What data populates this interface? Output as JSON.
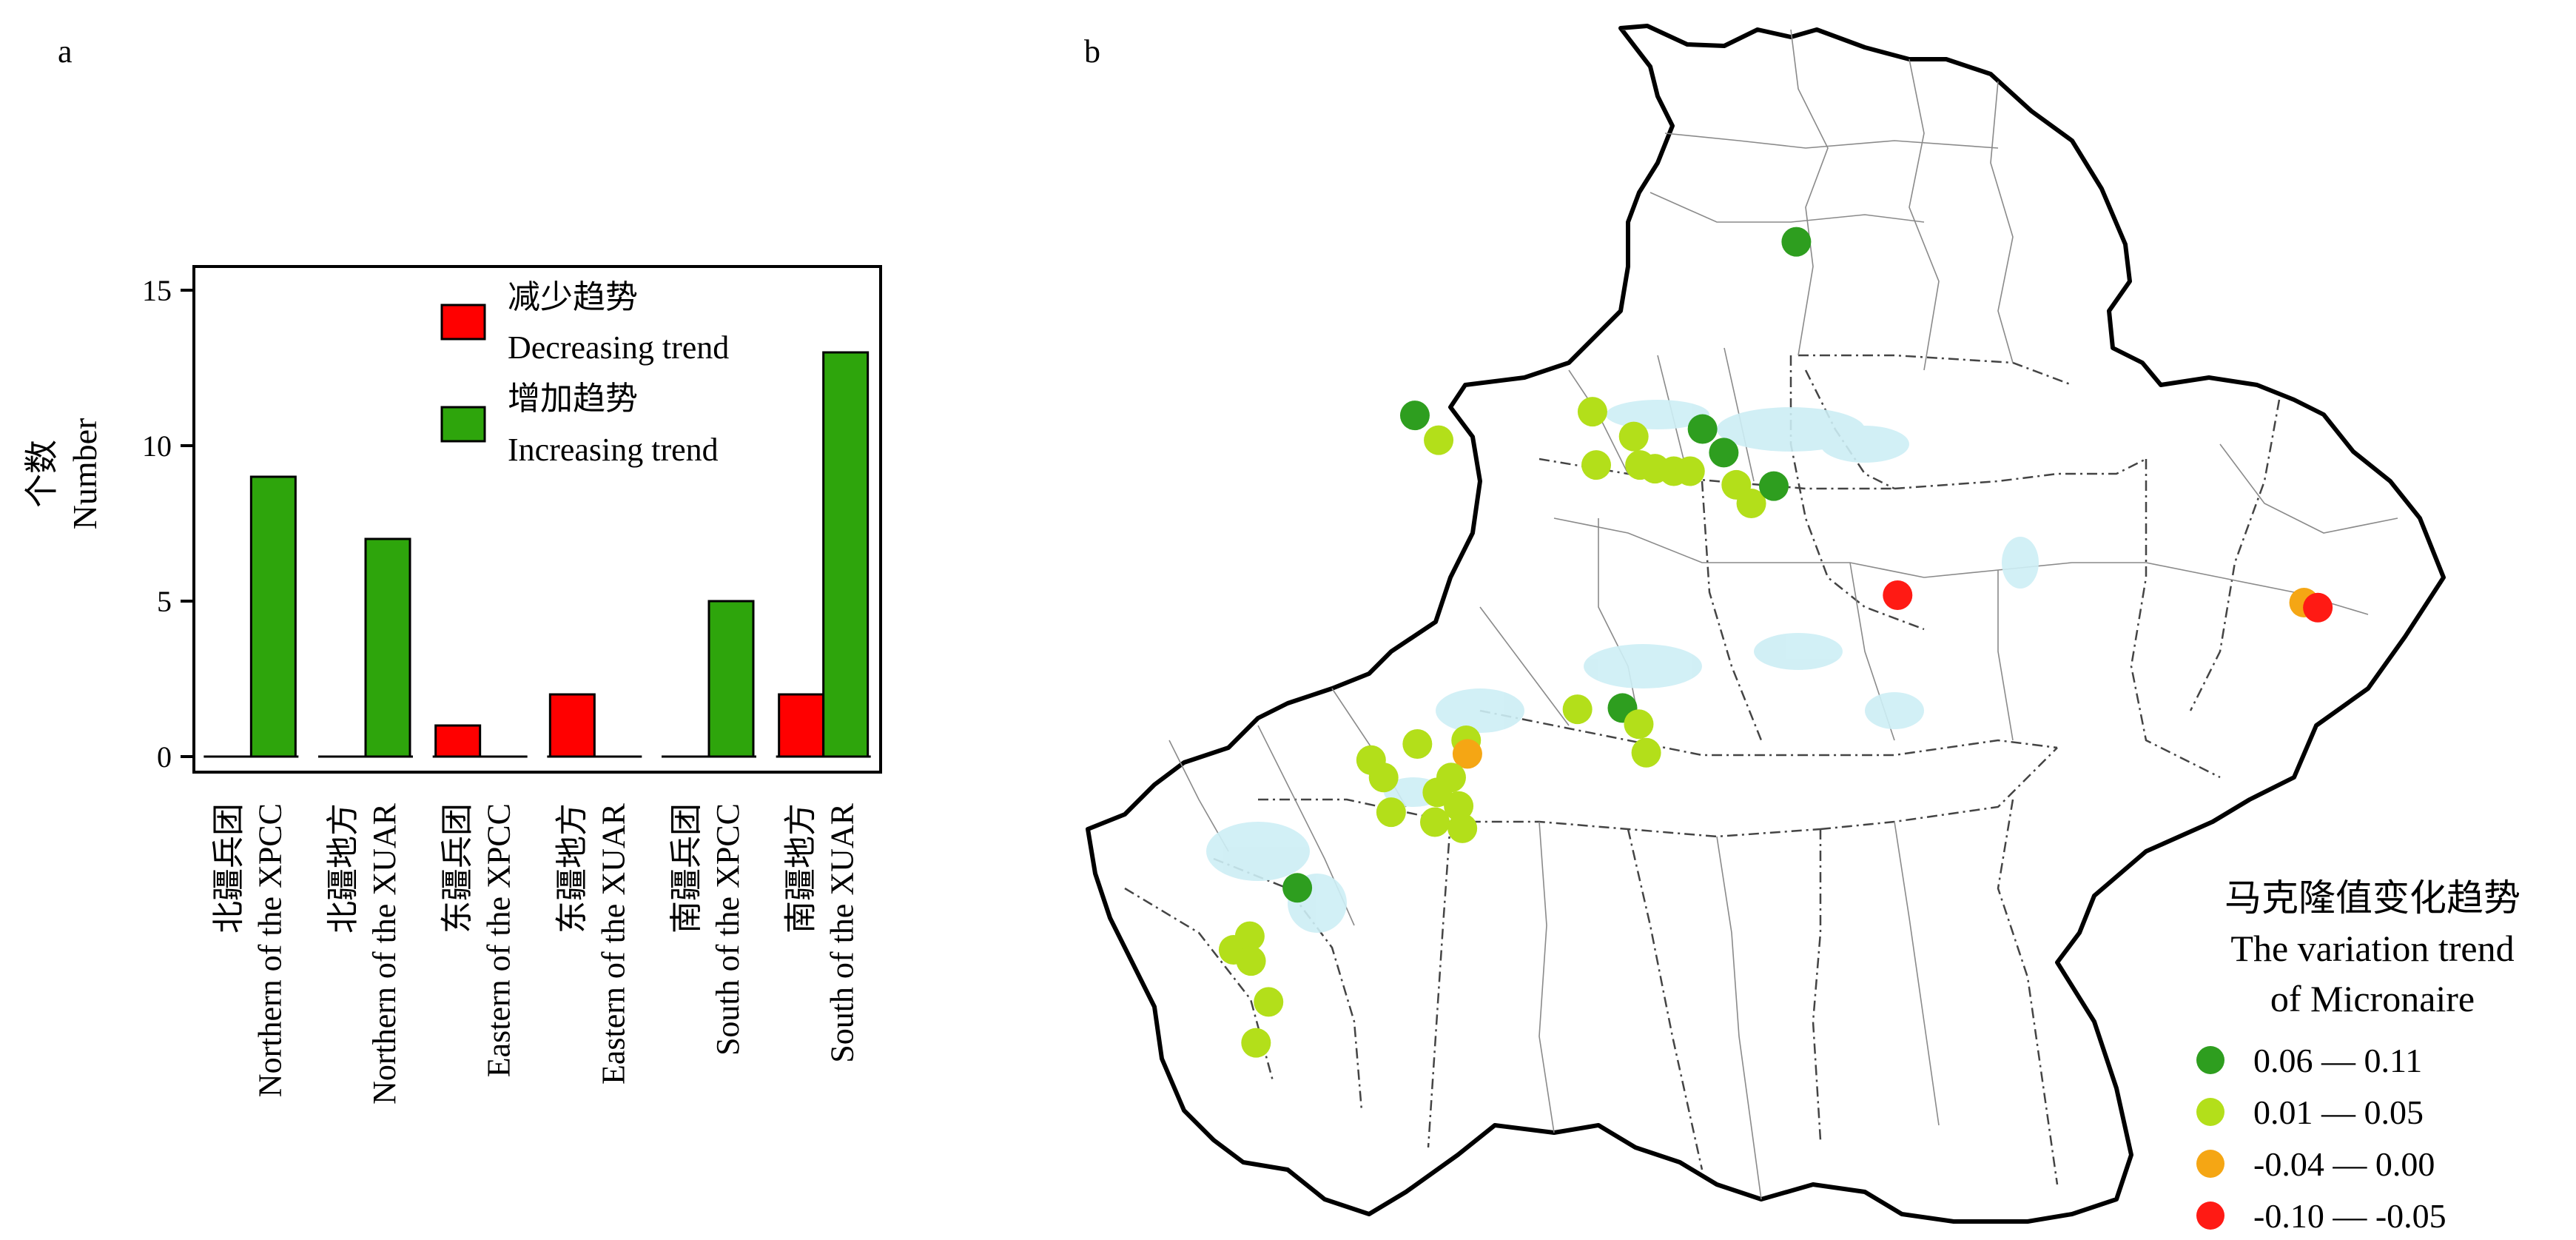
{
  "panel_a_letter": "a",
  "panel_b_letter": "b",
  "chart_data": [
    {
      "type": "bar",
      "ylabel_cn": "个数",
      "ylabel_en": "Number",
      "ylim": [
        0,
        16.5
      ],
      "yticks": [
        0,
        5,
        10,
        15
      ],
      "legend_position": "top-right",
      "categories": [
        {
          "cn": "北疆兵团",
          "en": "Northern of the XPCC"
        },
        {
          "cn": "北疆地方",
          "en": "Northern of the XUAR"
        },
        {
          "cn": "东疆兵团",
          "en": "Eastern of the XPCC"
        },
        {
          "cn": "东疆地方",
          "en": "Eastern of the XUAR"
        },
        {
          "cn": "南疆兵团",
          "en": "South of the XPCC"
        },
        {
          "cn": "南疆地方",
          "en": "South of the XUAR"
        }
      ],
      "series": [
        {
          "name_cn": "减少趋势",
          "name_en": "Decreasing trend",
          "color": "#ff0000",
          "values": [
            0,
            0,
            1,
            2,
            0,
            2
          ]
        },
        {
          "name_cn": "增加趋势",
          "name_en": "Increasing trend",
          "color": "#2ea50c",
          "values": [
            9,
            7,
            0,
            0,
            5,
            13
          ]
        }
      ]
    },
    {
      "type": "scatter",
      "legend_title_cn": "马克隆值变化趋势",
      "legend_title_en_1": "The variation trend",
      "legend_title_en_2": "of  Micronaire",
      "classes": [
        {
          "label": "0.06 — 0.11",
          "color": "#2e9e1f"
        },
        {
          "label": "0.01 — 0.05",
          "color": "#b3df1a"
        },
        {
          "label": "-0.04 — 0.00",
          "color": "#f5a614"
        },
        {
          "label": "-0.10 — -0.05",
          "color": "#ff1a14"
        }
      ],
      "points": [
        {
          "x": 0.46,
          "y": 0.195,
          "c": 0
        },
        {
          "x": 0.155,
          "y": 0.335,
          "c": 0
        },
        {
          "x": 0.174,
          "y": 0.355,
          "c": 1
        },
        {
          "x": 0.297,
          "y": 0.332,
          "c": 1
        },
        {
          "x": 0.3,
          "y": 0.375,
          "c": 1
        },
        {
          "x": 0.33,
          "y": 0.352,
          "c": 1
        },
        {
          "x": 0.335,
          "y": 0.375,
          "c": 1
        },
        {
          "x": 0.347,
          "y": 0.378,
          "c": 1
        },
        {
          "x": 0.362,
          "y": 0.38,
          "c": 1
        },
        {
          "x": 0.375,
          "y": 0.38,
          "c": 1
        },
        {
          "x": 0.385,
          "y": 0.346,
          "c": 0
        },
        {
          "x": 0.402,
          "y": 0.365,
          "c": 0
        },
        {
          "x": 0.412,
          "y": 0.391,
          "c": 1
        },
        {
          "x": 0.424,
          "y": 0.406,
          "c": 1
        },
        {
          "x": 0.442,
          "y": 0.392,
          "c": 0
        },
        {
          "x": 0.541,
          "y": 0.48,
          "c": 3
        },
        {
          "x": 0.866,
          "y": 0.486,
          "c": 2
        },
        {
          "x": 0.877,
          "y": 0.49,
          "c": 3
        },
        {
          "x": 0.285,
          "y": 0.572,
          "c": 1
        },
        {
          "x": 0.321,
          "y": 0.571,
          "c": 0
        },
        {
          "x": 0.334,
          "y": 0.584,
          "c": 1
        },
        {
          "x": 0.34,
          "y": 0.607,
          "c": 1
        },
        {
          "x": 0.196,
          "y": 0.597,
          "c": 1
        },
        {
          "x": 0.197,
          "y": 0.608,
          "c": 2
        },
        {
          "x": 0.157,
          "y": 0.6,
          "c": 1
        },
        {
          "x": 0.184,
          "y": 0.627,
          "c": 1
        },
        {
          "x": 0.173,
          "y": 0.639,
          "c": 1
        },
        {
          "x": 0.19,
          "y": 0.65,
          "c": 1
        },
        {
          "x": 0.136,
          "y": 0.655,
          "c": 1
        },
        {
          "x": 0.171,
          "y": 0.663,
          "c": 1
        },
        {
          "x": 0.193,
          "y": 0.668,
          "c": 1
        },
        {
          "x": 0.12,
          "y": 0.613,
          "c": 1
        },
        {
          "x": 0.13,
          "y": 0.627,
          "c": 1
        },
        {
          "x": 0.061,
          "y": 0.716,
          "c": 0
        },
        {
          "x": 0.01,
          "y": 0.766,
          "c": 1
        },
        {
          "x": 0.023,
          "y": 0.755,
          "c": 1
        },
        {
          "x": 0.024,
          "y": 0.775,
          "c": 1
        },
        {
          "x": 0.038,
          "y": 0.808,
          "c": 1
        },
        {
          "x": 0.028,
          "y": 0.841,
          "c": 1
        }
      ]
    }
  ]
}
